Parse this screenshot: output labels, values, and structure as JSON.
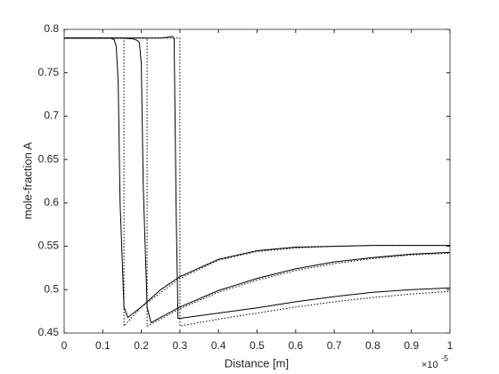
{
  "chart_data": {
    "type": "line",
    "xlabel": "Distance [m]",
    "ylabel": "mole-fraction A",
    "x_exponent": {
      "base": "×10",
      "power": "-5"
    },
    "xlim": [
      0,
      1
    ],
    "xticks": [
      0,
      0.1,
      0.2,
      0.3,
      0.4,
      0.5,
      0.6,
      0.7,
      0.8,
      0.9,
      1
    ],
    "ylim": [
      0.45,
      0.8
    ],
    "yticks": [
      0.45,
      0.5,
      0.55,
      0.6,
      0.65,
      0.7,
      0.75,
      0.8
    ],
    "grid": false,
    "series": [
      {
        "color": "#000000",
        "style": "solid",
        "x": [
          0,
          0.1,
          0.12,
          0.13,
          0.135,
          0.14,
          0.145,
          0.155,
          0.165,
          0.2,
          0.25,
          0.3,
          0.4,
          0.5,
          0.6,
          0.7,
          0.8,
          0.9,
          1
        ],
        "values": [
          0.79,
          0.79,
          0.79,
          0.788,
          0.78,
          0.74,
          0.6,
          0.48,
          0.468,
          0.48,
          0.5,
          0.515,
          0.535,
          0.545,
          0.549,
          0.55,
          0.551,
          0.551,
          0.551
        ]
      },
      {
        "color": "#000000",
        "style": "solid",
        "x": [
          0,
          0.15,
          0.18,
          0.19,
          0.195,
          0.2,
          0.205,
          0.215,
          0.225,
          0.25,
          0.3,
          0.4,
          0.5,
          0.6,
          0.7,
          0.8,
          0.9,
          1
        ],
        "values": [
          0.79,
          0.79,
          0.789,
          0.787,
          0.785,
          0.76,
          0.62,
          0.48,
          0.462,
          0.468,
          0.48,
          0.499,
          0.513,
          0.524,
          0.532,
          0.537,
          0.541,
          0.543
        ]
      },
      {
        "color": "#000000",
        "style": "solid",
        "x": [
          0,
          0.2,
          0.25,
          0.27,
          0.28,
          0.285,
          0.29,
          0.295,
          0.3,
          0.4,
          0.5,
          0.6,
          0.7,
          0.8,
          0.9,
          1
        ],
        "values": [
          0.79,
          0.79,
          0.79,
          0.791,
          0.792,
          0.79,
          0.6,
          0.467,
          0.467,
          0.473,
          0.479,
          0.486,
          0.492,
          0.497,
          0.5,
          0.502
        ]
      },
      {
        "color": "#000000",
        "style": "dotted",
        "x": [
          0,
          0.155,
          0.155,
          0.2,
          0.3,
          0.4,
          0.5,
          0.6,
          0.7,
          0.8,
          0.9,
          1
        ],
        "values": [
          0.79,
          0.79,
          0.458,
          0.48,
          0.513,
          0.534,
          0.544,
          0.548,
          0.55,
          0.551,
          0.551,
          0.551
        ]
      },
      {
        "color": "#000000",
        "style": "dotted",
        "x": [
          0,
          0.215,
          0.215,
          0.25,
          0.3,
          0.4,
          0.5,
          0.6,
          0.7,
          0.8,
          0.9,
          1
        ],
        "values": [
          0.79,
          0.79,
          0.458,
          0.466,
          0.478,
          0.497,
          0.511,
          0.522,
          0.53,
          0.536,
          0.54,
          0.542
        ]
      },
      {
        "color": "#000000",
        "style": "dotted",
        "x": [
          0,
          0.3,
          0.3,
          0.4,
          0.5,
          0.6,
          0.7,
          0.8,
          0.9,
          1
        ],
        "values": [
          0.79,
          0.79,
          0.458,
          0.466,
          0.473,
          0.48,
          0.486,
          0.491,
          0.495,
          0.498
        ]
      }
    ]
  }
}
